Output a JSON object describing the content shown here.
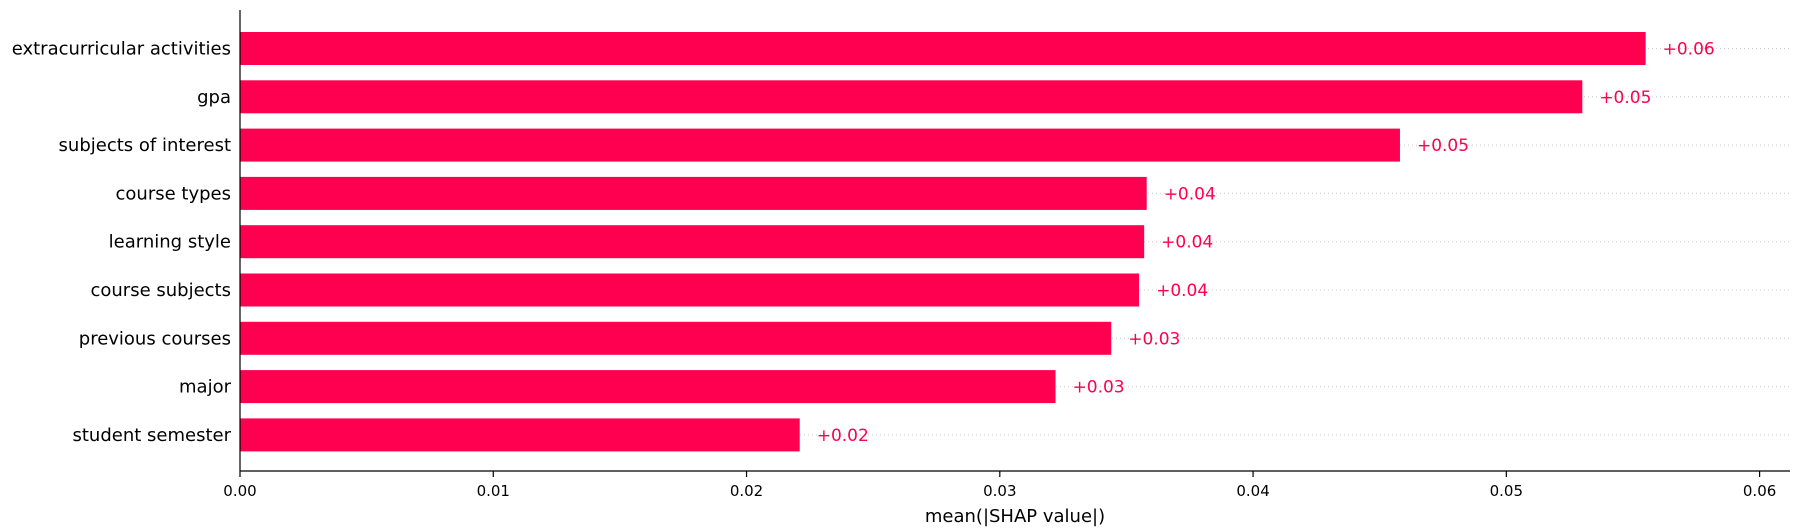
{
  "chart_data": {
    "type": "bar",
    "orientation": "horizontal",
    "categories": [
      "extracurricular activities",
      "gpa",
      "subjects of interest",
      "course types",
      "learning style",
      "course subjects",
      "previous courses",
      "major",
      "student semester"
    ],
    "values": [
      0.0555,
      0.053,
      0.0458,
      0.0358,
      0.0357,
      0.0355,
      0.0344,
      0.0322,
      0.0221
    ],
    "value_labels": [
      "+0.06",
      "+0.05",
      "+0.05",
      "+0.04",
      "+0.04",
      "+0.04",
      "+0.03",
      "+0.03",
      "+0.02"
    ],
    "title": "",
    "xlabel": "mean(|SHAP value|)",
    "ylabel": "",
    "xlim": [
      0,
      0.0612
    ],
    "xticks": [
      0.0,
      0.01,
      0.02,
      0.03,
      0.04,
      0.05,
      0.06
    ],
    "xtick_labels": [
      "0.00",
      "0.01",
      "0.02",
      "0.03",
      "0.04",
      "0.05",
      "0.06"
    ],
    "grid": "dotted row guides",
    "legend": "none",
    "colors": {
      "bar": "#ff0051",
      "axis": "#000000",
      "guide": "#cccccc"
    }
  }
}
